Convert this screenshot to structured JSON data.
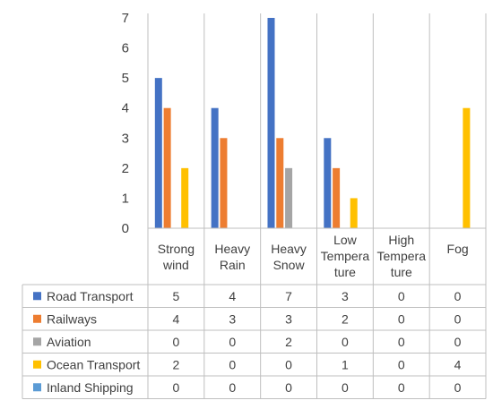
{
  "chart_data": {
    "type": "bar",
    "categories": [
      [
        "Strong",
        "wind"
      ],
      [
        "Heavy",
        "Rain"
      ],
      [
        "Heavy",
        "Snow"
      ],
      [
        "Low",
        "Tempera",
        "ture"
      ],
      [
        "High",
        "Tempera",
        "ture"
      ],
      [
        "Fog"
      ]
    ],
    "series": [
      {
        "name": "Road Transport",
        "color": "#4472C4",
        "values": [
          5,
          4,
          7,
          3,
          0,
          0
        ]
      },
      {
        "name": "Railways",
        "color": "#ED7D31",
        "values": [
          4,
          3,
          3,
          2,
          0,
          0
        ]
      },
      {
        "name": "Aviation",
        "color": "#A5A5A5",
        "values": [
          0,
          0,
          2,
          0,
          0,
          0
        ]
      },
      {
        "name": "Ocean Transport",
        "color": "#FFC000",
        "values": [
          2,
          0,
          0,
          1,
          0,
          4
        ]
      },
      {
        "name": "Inland Shipping",
        "color": "#5B9BD5",
        "values": [
          0,
          0,
          0,
          0,
          0,
          0
        ]
      }
    ],
    "y_ticks": [
      "0",
      "1",
      "2",
      "3",
      "4",
      "5",
      "6",
      "7"
    ],
    "ylim": [
      0,
      7
    ],
    "grid": false,
    "legend": "data-table"
  }
}
